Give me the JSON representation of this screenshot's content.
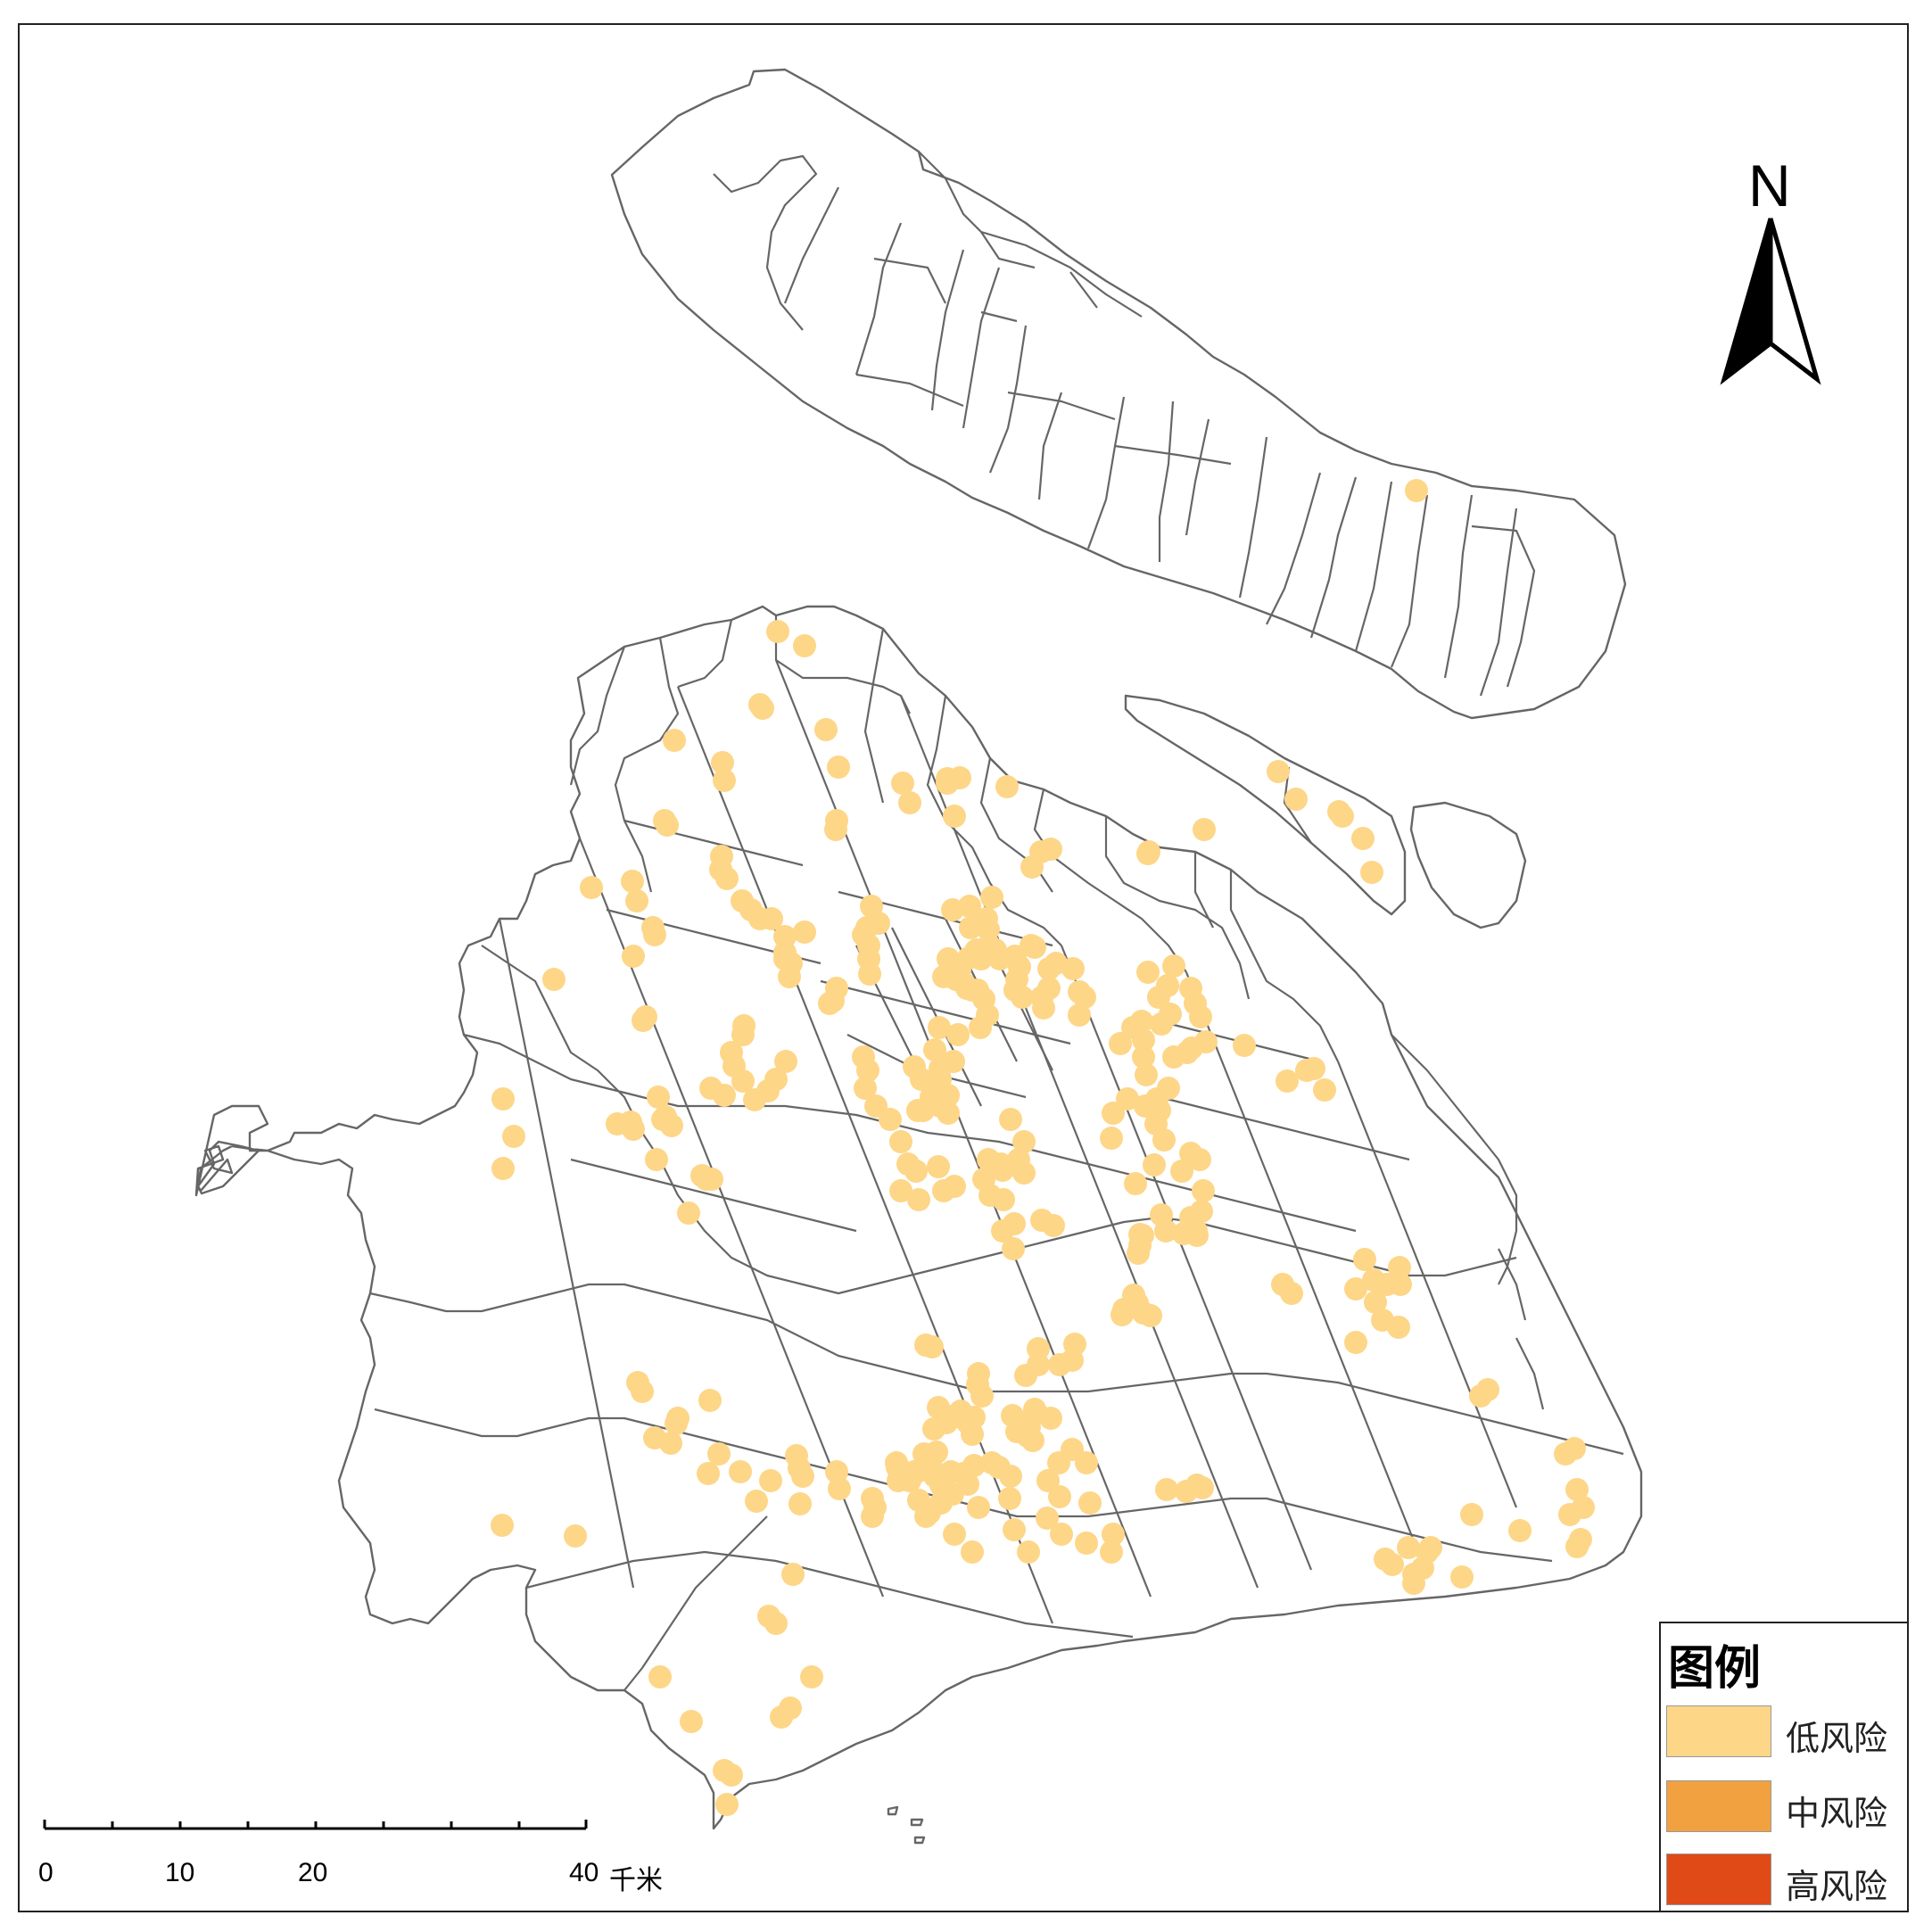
{
  "map": {
    "north_label": "N",
    "point_color": "#fdd688",
    "risk_points": "low",
    "legend": {
      "title": "图例",
      "items": [
        {
          "label": "低风险",
          "color": "#fdd688"
        },
        {
          "label": "中风险",
          "color": "#f2a141"
        },
        {
          "label": "高风险",
          "color": "#e04a17"
        }
      ]
    },
    "scale": {
      "labels": [
        "0",
        "10",
        "20",
        "40"
      ],
      "unit": "千米"
    }
  }
}
